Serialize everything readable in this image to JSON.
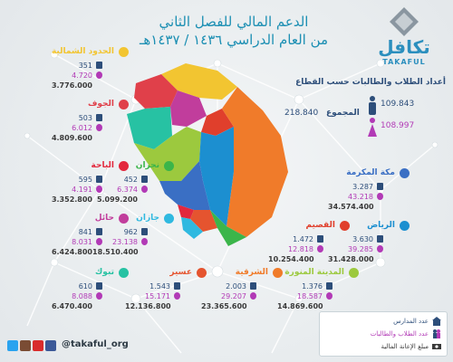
{
  "title": {
    "line1": "الدعم المالي للفصل الثاني",
    "line2": "من العام الدراسي ١٤٣٦ / ١٤٣٧هـ"
  },
  "logo": {
    "arabic": "تكافل",
    "english": "TAKAFUL"
  },
  "totals": {
    "heading": "أعداد الطلاب والطالبات حسب القطاع",
    "male": "109.843",
    "female": "108.997",
    "total_label": "المجموع",
    "total_value": "218.840"
  },
  "regions": [
    {
      "id": "northern",
      "name": "الحدود الشمالية",
      "dot_color": "#f2c531",
      "schools": "351",
      "students": "4.720",
      "amount": "3.776.000"
    },
    {
      "id": "jouf",
      "name": "الجوف",
      "dot_color": "#e0404a",
      "schools": "503",
      "students": "6.012",
      "amount": "4.809.600"
    },
    {
      "id": "baha",
      "name": "الباحة",
      "dot_color": "#e3283d",
      "schools": "595",
      "students": "4.191",
      "amount": "3.352.800"
    },
    {
      "id": "najran",
      "name": "نجران",
      "dot_color": "#3bb54a",
      "schools": "452",
      "students": "6.374",
      "amount": "5.099.200"
    },
    {
      "id": "hail",
      "name": "حائل",
      "dot_color": "#c13d9c",
      "schools": "841",
      "students": "8.031",
      "amount": "6.424.800"
    },
    {
      "id": "jazan",
      "name": "جازان",
      "dot_color": "#2fb9e0",
      "schools": "962",
      "students": "23.138",
      "amount": "18.510.400"
    },
    {
      "id": "tabuk",
      "name": "تبوك",
      "dot_color": "#27c2a3",
      "schools": "610",
      "students": "8.088",
      "amount": "6.470.400"
    },
    {
      "id": "asir",
      "name": "عسير",
      "dot_color": "#e5542f",
      "schools": "1.543",
      "students": "15.171",
      "amount": "12.136.800"
    },
    {
      "id": "eastern",
      "name": "الشرقية",
      "dot_color": "#f07b2a",
      "schools": "2.003",
      "students": "29.207",
      "amount": "23.365.600"
    },
    {
      "id": "madinah",
      "name": "المدينة المنورة",
      "dot_color": "#9cc93e",
      "schools": "1.376",
      "students": "18.587",
      "amount": "14.869.600"
    },
    {
      "id": "makkah",
      "name": "مكة المكرمة",
      "dot_color": "#3a6fc4",
      "schools": "3.287",
      "students": "43.218",
      "amount": "34.574.400"
    },
    {
      "id": "riyadh",
      "name": "الرياض",
      "dot_color": "#1c8fd0",
      "schools": "3.630",
      "students": "39.285",
      "amount": "31.428.000"
    },
    {
      "id": "qassim",
      "name": "القصيم",
      "dot_color": "#e03f2c",
      "schools": "1.472",
      "students": "12.818",
      "amount": "10.254.400"
    }
  ],
  "legend": {
    "schools": "عدد المدارس",
    "students": "عدد الطلاب والطالبات",
    "amount": "مبلغ الإعانة المالية"
  },
  "social": {
    "handle": "@takaful_org"
  },
  "colors": {
    "title": "#1c8fb3",
    "male": "#2d4e7a",
    "female": "#b23ab6",
    "amount": "#3a3a3a",
    "accent": "#2b8fbe"
  }
}
